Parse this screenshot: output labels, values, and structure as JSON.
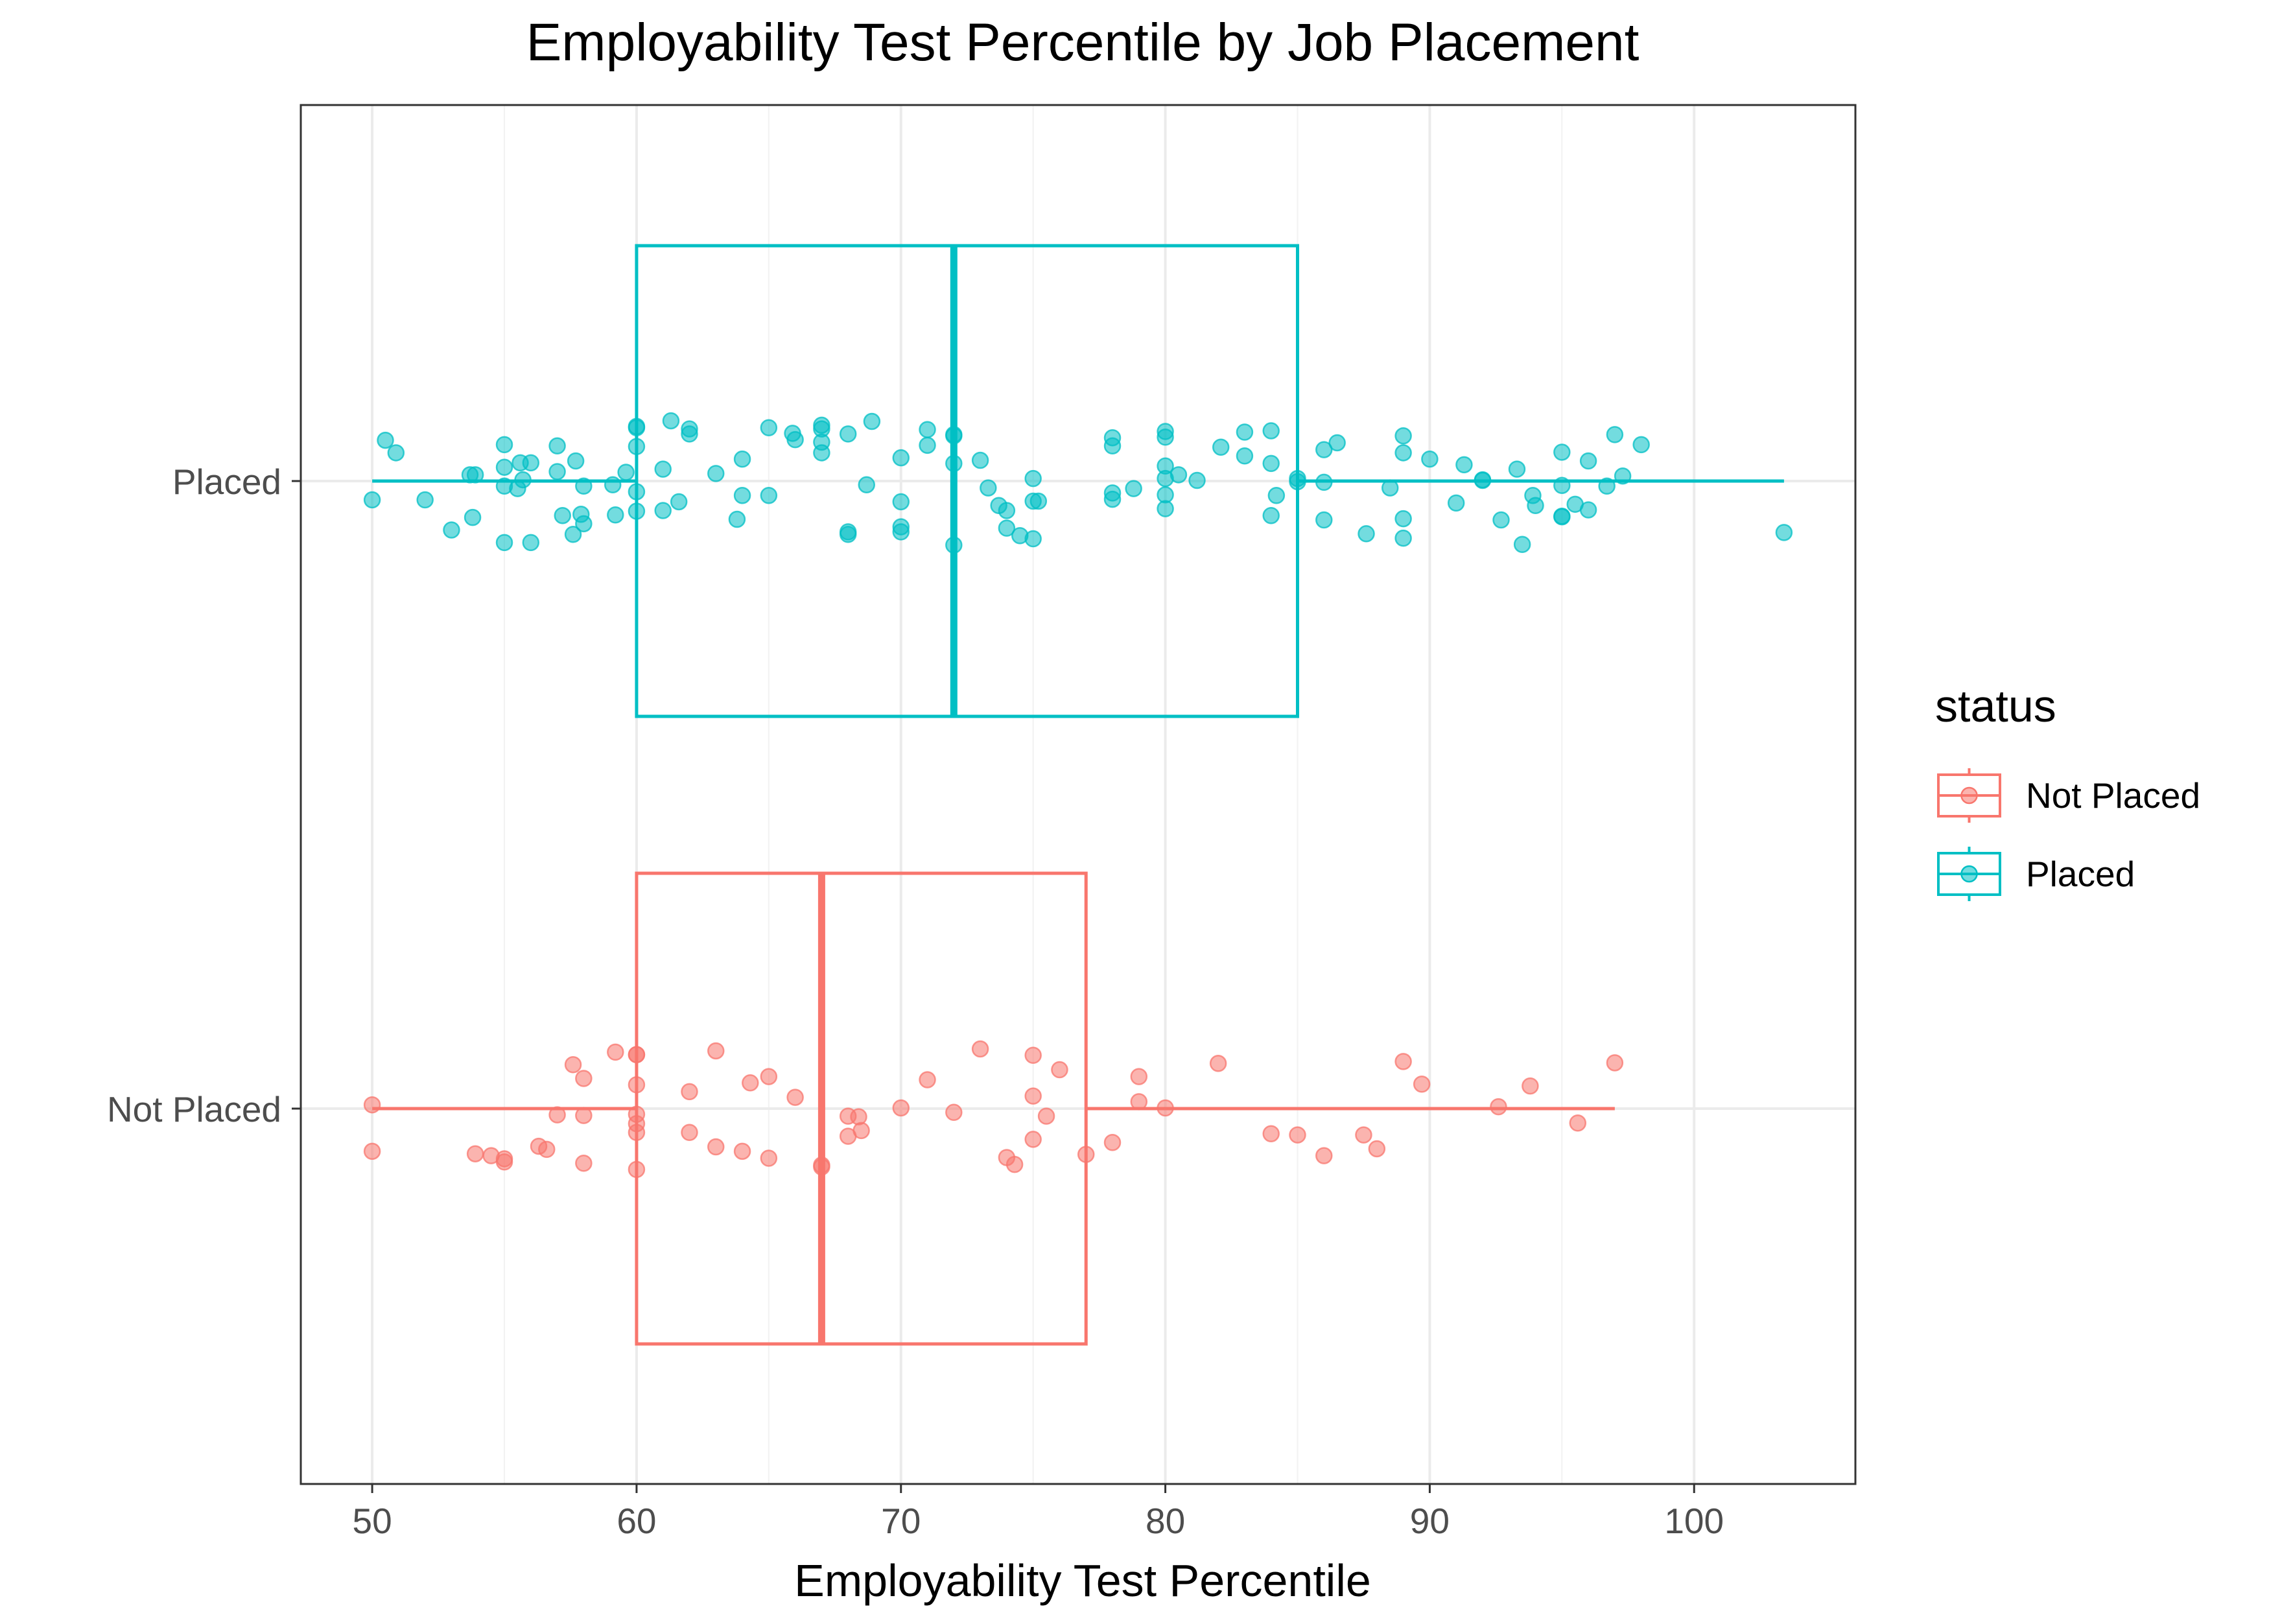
{
  "chart_data": {
    "type": "boxplot",
    "title": "Employability Test Percentile by Job Placement",
    "xlabel": "Employability Test Percentile",
    "ylabel": "",
    "xlim": [
      47.3,
      106.1
    ],
    "xticks": [
      50,
      60,
      70,
      80,
      90,
      100
    ],
    "categories": [
      "Not Placed",
      "Placed"
    ],
    "grid": true,
    "legend": {
      "title": "status",
      "position": "right",
      "entries": [
        "Not Placed",
        "Placed"
      ]
    },
    "series": [
      {
        "name": "Not Placed",
        "color": "#F8766D",
        "box": {
          "min": 50,
          "q1": 60,
          "median": 67,
          "q3": 77,
          "max": 97
        },
        "points": [
          [
            50,
            0.006
          ],
          [
            50,
            -0.068
          ],
          [
            53.9,
            -0.072
          ],
          [
            54.5,
            -0.075
          ],
          [
            55,
            -0.08
          ],
          [
            55,
            -0.085
          ],
          [
            56.3,
            -0.06
          ],
          [
            56.6,
            -0.065
          ],
          [
            57,
            -0.01
          ],
          [
            57.6,
            0.07
          ],
          [
            58,
            0.048
          ],
          [
            58,
            -0.011
          ],
          [
            58,
            -0.087
          ],
          [
            59.2,
            0.09
          ],
          [
            60,
            0.086
          ],
          [
            60,
            0.086
          ],
          [
            60,
            0.038
          ],
          [
            60,
            -0.009
          ],
          [
            60,
            -0.024
          ],
          [
            60,
            -0.038
          ],
          [
            60,
            -0.097
          ],
          [
            62,
            0.027
          ],
          [
            62,
            -0.038
          ],
          [
            63,
            0.092
          ],
          [
            63,
            -0.061
          ],
          [
            64,
            -0.068
          ],
          [
            64.3,
            0.041
          ],
          [
            65,
            0.051
          ],
          [
            65,
            -0.079
          ],
          [
            66,
            0.018
          ],
          [
            67,
            -0.09
          ],
          [
            67,
            -0.093
          ],
          [
            68,
            -0.012
          ],
          [
            68,
            -0.044
          ],
          [
            68.4,
            -0.013
          ],
          [
            68.5,
            -0.035
          ],
          [
            70,
            0.001
          ],
          [
            71,
            0.046
          ],
          [
            72,
            -0.006
          ],
          [
            73,
            0.095
          ],
          [
            74,
            -0.078
          ],
          [
            74.3,
            -0.089
          ],
          [
            75,
            0.085
          ],
          [
            75,
            0.02
          ],
          [
            75,
            -0.049
          ],
          [
            75.5,
            -0.012
          ],
          [
            76,
            0.062
          ],
          [
            77,
            -0.073
          ],
          [
            78,
            -0.054
          ],
          [
            79,
            0.051
          ],
          [
            79,
            0.011
          ],
          [
            80,
            0.001
          ],
          [
            82,
            0.072
          ],
          [
            84,
            -0.04
          ],
          [
            85,
            -0.042
          ],
          [
            86,
            -0.075
          ],
          [
            87.5,
            -0.042
          ],
          [
            88,
            -0.064
          ],
          [
            89,
            0.075
          ],
          [
            89.7,
            0.039
          ],
          [
            92.6,
            0.003
          ],
          [
            93.8,
            0.036
          ],
          [
            95.6,
            -0.023
          ],
          [
            97,
            0.073
          ]
        ]
      },
      {
        "name": "Placed",
        "color": "#00BFC4",
        "box": {
          "min": 50,
          "q1": 60,
          "median": 72,
          "q3": 85,
          "max": 103.4
        },
        "points": [
          [
            50,
            -0.03
          ],
          [
            50.5,
            0.065
          ],
          [
            50.9,
            0.045
          ],
          [
            52,
            -0.03
          ],
          [
            53,
            -0.078
          ],
          [
            53.7,
            0.01
          ],
          [
            53.8,
            -0.058
          ],
          [
            53.9,
            0.01
          ],
          [
            55,
            0.058
          ],
          [
            55,
            0.022
          ],
          [
            55,
            -0.008
          ],
          [
            55,
            -0.098
          ],
          [
            55.5,
            -0.012
          ],
          [
            55.6,
            0.029
          ],
          [
            55.7,
            0.002
          ],
          [
            56,
            0.029
          ],
          [
            56,
            -0.098
          ],
          [
            57,
            0.056
          ],
          [
            57,
            0.015
          ],
          [
            57.2,
            -0.055
          ],
          [
            57.6,
            -0.085
          ],
          [
            57.7,
            0.032
          ],
          [
            57.9,
            -0.053
          ],
          [
            58,
            -0.008
          ],
          [
            58,
            -0.068
          ],
          [
            59.1,
            -0.006
          ],
          [
            59.2,
            -0.054
          ],
          [
            59.6,
            0.014
          ],
          [
            60,
            0.087
          ],
          [
            60,
            0.085
          ],
          [
            60,
            0.055
          ],
          [
            60,
            -0.017
          ],
          [
            60,
            -0.048
          ],
          [
            61,
            0.019
          ],
          [
            61,
            -0.047
          ],
          [
            61.3,
            0.096
          ],
          [
            61.6,
            -0.033
          ],
          [
            62,
            0.083
          ],
          [
            62,
            0.075
          ],
          [
            63,
            0.012
          ],
          [
            63.8,
            -0.061
          ],
          [
            64,
            0.035
          ],
          [
            64,
            -0.023
          ],
          [
            65,
            0.085
          ],
          [
            65,
            -0.023
          ],
          [
            65.9,
            0.076
          ],
          [
            66,
            0.066
          ],
          [
            67,
            0.089
          ],
          [
            67,
            0.083
          ],
          [
            67,
            0.062
          ],
          [
            67,
            0.045
          ],
          [
            68,
            0.075
          ],
          [
            68,
            -0.081
          ],
          [
            68,
            -0.085
          ],
          [
            68.7,
            -0.006
          ],
          [
            68.9,
            0.095
          ],
          [
            70,
            0.037
          ],
          [
            70,
            -0.033
          ],
          [
            70,
            -0.073
          ],
          [
            70,
            -0.081
          ],
          [
            71,
            0.082
          ],
          [
            71,
            0.057
          ],
          [
            72,
            0.074
          ],
          [
            72,
            0.072
          ],
          [
            72,
            0.028
          ],
          [
            72,
            -0.102
          ],
          [
            73,
            0.033
          ],
          [
            73.3,
            -0.011
          ],
          [
            73.7,
            -0.039
          ],
          [
            74,
            -0.047
          ],
          [
            74,
            -0.075
          ],
          [
            74.5,
            -0.087
          ],
          [
            75,
            0.004
          ],
          [
            75,
            -0.032
          ],
          [
            75,
            -0.092
          ],
          [
            75.2,
            -0.032
          ],
          [
            78,
            0.069
          ],
          [
            78,
            0.056
          ],
          [
            78,
            -0.019
          ],
          [
            78,
            -0.029
          ],
          [
            78.8,
            -0.012
          ],
          [
            80,
            0.079
          ],
          [
            80,
            0.07
          ],
          [
            80,
            0.024
          ],
          [
            80,
            0.004
          ],
          [
            80,
            -0.022
          ],
          [
            80,
            -0.044
          ],
          [
            80.5,
            0.01
          ],
          [
            81.2,
            0.001
          ],
          [
            82.1,
            0.054
          ],
          [
            83,
            0.078
          ],
          [
            83,
            0.04
          ],
          [
            84,
            0.08
          ],
          [
            84,
            0.028
          ],
          [
            84,
            -0.055
          ],
          [
            84.2,
            -0.023
          ],
          [
            85,
            0.004
          ],
          [
            85,
            -0.001
          ],
          [
            86,
            0.05
          ],
          [
            86,
            -0.002
          ],
          [
            86,
            -0.062
          ],
          [
            86.5,
            0.061
          ],
          [
            87.6,
            -0.084
          ],
          [
            88.5,
            -0.011
          ],
          [
            89,
            0.072
          ],
          [
            89,
            0.045
          ],
          [
            89,
            -0.06
          ],
          [
            89,
            -0.091
          ],
          [
            90,
            0.035
          ],
          [
            91,
            -0.035
          ],
          [
            91.3,
            0.026
          ],
          [
            92,
            0.002
          ],
          [
            92,
            0.001
          ],
          [
            92.7,
            -0.062
          ],
          [
            93.3,
            0.019
          ],
          [
            93.5,
            -0.101
          ],
          [
            93.9,
            -0.023
          ],
          [
            94,
            -0.039
          ],
          [
            95,
            0.046
          ],
          [
            95,
            -0.007
          ],
          [
            95,
            -0.057
          ],
          [
            95,
            -0.056
          ],
          [
            95.5,
            -0.037
          ],
          [
            96,
            0.032
          ],
          [
            96,
            -0.046
          ],
          [
            96.7,
            -0.008
          ],
          [
            97,
            0.074
          ],
          [
            97.3,
            0.008
          ],
          [
            98,
            0.058
          ],
          [
            103.4,
            -0.082
          ]
        ]
      }
    ]
  }
}
